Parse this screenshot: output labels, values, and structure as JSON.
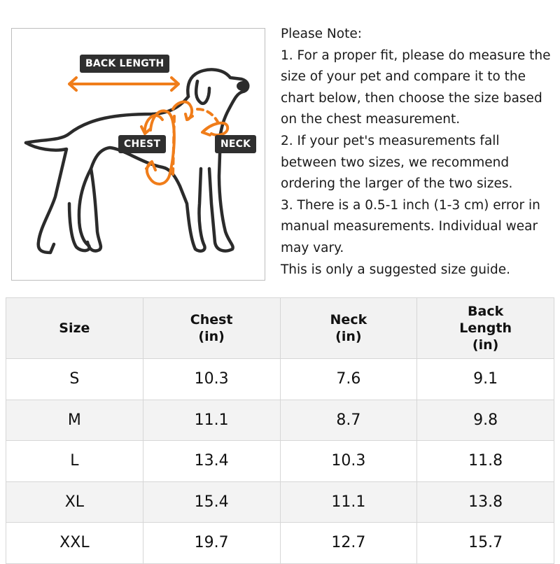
{
  "figure": {
    "labels": {
      "back_length": "BACK LENGTH",
      "chest": "CHEST",
      "neck": "NECK"
    },
    "colors": {
      "arrow": "#f07d1a",
      "outline": "#2b2b2b",
      "label_bg": "#2f2f2f"
    }
  },
  "notes": [
    "Please Note:",
    "1. For a proper fit, please do measure the size of your pet and compare it to the chart below, then choose the size based on the chest measurement.",
    "2. If your pet's measurements fall between two sizes, we recommend ordering the larger of the two sizes.",
    "3. There is a 0.5-1 inch (1-3 cm) error in manual measurements. Individual wear may vary.",
    "This is only a suggested size guide."
  ],
  "table": {
    "headers": [
      [
        "Size"
      ],
      [
        "Chest",
        "(in)"
      ],
      [
        "Neck",
        "(in)"
      ],
      [
        "Back",
        "Length",
        "(in)"
      ]
    ],
    "rows": [
      [
        "S",
        "10.3",
        "7.6",
        "9.1"
      ],
      [
        "M",
        "11.1",
        "8.7",
        "9.8"
      ],
      [
        "L",
        "13.4",
        "10.3",
        "11.8"
      ],
      [
        "XL",
        "15.4",
        "11.1",
        "13.8"
      ],
      [
        "XXL",
        "19.7",
        "12.7",
        "15.7"
      ]
    ]
  }
}
